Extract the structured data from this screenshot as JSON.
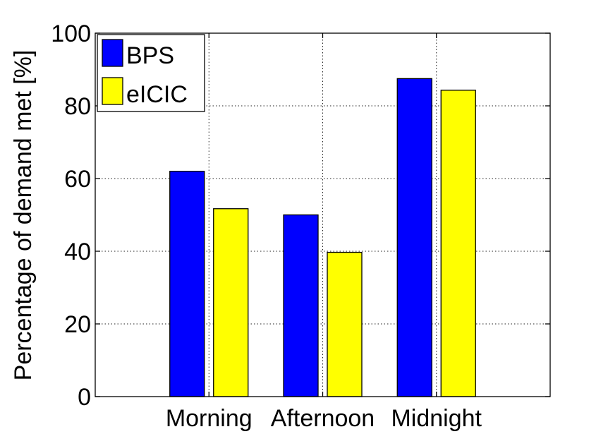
{
  "chart_data": {
    "type": "bar",
    "categories": [
      "Morning",
      "Afternoon",
      "Midnight"
    ],
    "series": [
      {
        "name": "BPS",
        "color": "#0000ff",
        "values": [
          62,
          50,
          87.5
        ]
      },
      {
        "name": "eICIC",
        "color": "#ffff00",
        "values": [
          51.7,
          39.7,
          84.3
        ]
      }
    ],
    "ylabel": "Percentage of demand met [%]",
    "xlabel": "",
    "title": "",
    "ylim": [
      0,
      100
    ],
    "yticks": [
      0,
      20,
      40,
      60,
      80,
      100
    ],
    "grid": true,
    "legend_position": "top-left"
  }
}
